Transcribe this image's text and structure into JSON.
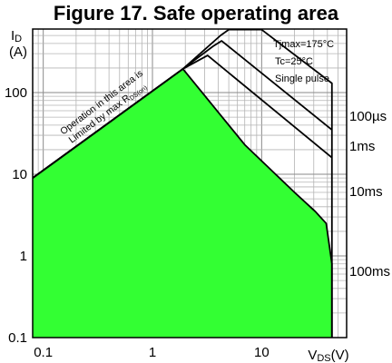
{
  "chart_data": {
    "type": "line",
    "title": "Figure 17. Safe operating area",
    "xlabel": "VDS(V)",
    "ylabel": "ID (A)",
    "xscale": "log",
    "yscale": "log",
    "xlim": [
      0.08,
      60
    ],
    "ylim": [
      0.1,
      600
    ],
    "x_ticks": [
      {
        "value": 0.1,
        "label": "0.1"
      },
      {
        "value": 1,
        "label": "1"
      },
      {
        "value": 10,
        "label": "10"
      }
    ],
    "y_ticks": [
      {
        "value": 0.1,
        "label": "0.1"
      },
      {
        "value": 1,
        "label": "1"
      },
      {
        "value": 10,
        "label": "10"
      },
      {
        "value": 100,
        "label": "100"
      }
    ],
    "grid": true,
    "annotations": [
      "Tjmax=175°C",
      "Tc=25°C",
      "Single pulse"
    ],
    "region_label": "Operation in this area is Limited by max R",
    "region_label_sub": "DS(on)",
    "series": [
      {
        "name": "100µs",
        "points": [
          [
            0.08,
            9
          ],
          [
            1.9,
            195
          ],
          [
            4.2,
            500
          ],
          [
            5.0,
            590
          ],
          [
            10,
            590
          ],
          [
            44,
            130
          ],
          [
            44,
            0.1
          ]
        ]
      },
      {
        "name": "1ms",
        "points": [
          [
            0.08,
            9
          ],
          [
            1.9,
            195
          ],
          [
            3.6,
            370
          ],
          [
            4.3,
            430
          ],
          [
            44,
            35
          ]
        ]
      },
      {
        "name": "10ms",
        "points": [
          [
            0.08,
            9
          ],
          [
            1.9,
            195
          ],
          [
            3.2,
            285
          ],
          [
            44,
            16
          ]
        ]
      },
      {
        "name": "100ms",
        "fill_color": "#33ff33",
        "points": [
          [
            0.08,
            9
          ],
          [
            1.9,
            195
          ],
          [
            7,
            23
          ],
          [
            20,
            6
          ],
          [
            31,
            3.5
          ],
          [
            39,
            2.5
          ],
          [
            44,
            0.8
          ],
          [
            44,
            0.1
          ]
        ]
      }
    ]
  }
}
